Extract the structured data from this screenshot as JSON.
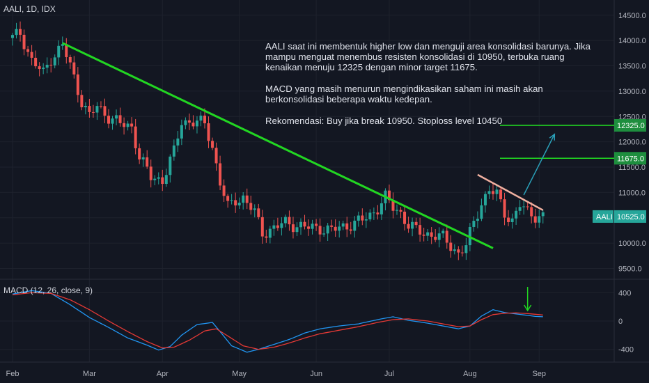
{
  "header": {
    "title": "AALI, 1D, IDX"
  },
  "macd_header": {
    "label": "MACD (12, 26, close, 9)"
  },
  "annotation": {
    "paragraph1": "AALI saat ini membentuk higher low dan menguji area konsolidasi barunya. Jika mampu menguat menembus resisten konsolidasi di 10950, terbuka ruang kenaikan menuju 12325 dengan minor target 11675.",
    "paragraph2": "MACD yang masih menurun mengindikasikan saham ini masih akan berkonsolidasi beberapa waktu kedepan.",
    "paragraph3": "Rekomendasi: Buy jika break 10950. Stoploss level 10450"
  },
  "colors": {
    "background": "#131722",
    "grid": "#1e222d",
    "up": "#26a69a",
    "down": "#ef5350",
    "trendline": "#22d622",
    "target_line": "#22e022",
    "resistance": "#f0b0a0",
    "arrow": "#2a9fb8",
    "macd_line": "#2196f3",
    "signal_line": "#e53935",
    "axis_text": "#b2b5be",
    "last_price_bg": "#26a69a"
  },
  "chart_data": [
    {
      "type": "candlestick",
      "title": "AALI, 1D, IDX",
      "ylim": [
        9300,
        14800
      ],
      "y_ticks": [
        9500,
        10000,
        10500,
        11000,
        11500,
        12000,
        12500,
        13000,
        13500,
        14000,
        14500
      ],
      "y_tick_labels": [
        "9500.0",
        "10000.0",
        "10500.0",
        "11000.0",
        "11500.0",
        "12000.0",
        "12500.0",
        "13000.0",
        "13500.0",
        "14000.0",
        "14500.0"
      ],
      "x_tick_labels": [
        "Feb",
        "Mar",
        "Apr",
        "May",
        "Jun",
        "Jul",
        "Aug",
        "Sep"
      ],
      "x_tick_index": [
        0,
        20,
        39,
        59,
        79,
        98,
        119,
        137
      ],
      "last_price": 10525,
      "last_label": "AALI",
      "last_value_label": "10525.0",
      "targets": [
        {
          "value": 12325,
          "label": "12325.0"
        },
        {
          "value": 11675,
          "label": "11675.0"
        }
      ],
      "close_anchors": [
        [
          0,
          14050
        ],
        [
          2,
          14150
        ],
        [
          5,
          13600
        ],
        [
          8,
          13350
        ],
        [
          10,
          13650
        ],
        [
          13,
          13900
        ],
        [
          15,
          13500
        ],
        [
          18,
          12800
        ],
        [
          20,
          12500
        ],
        [
          22,
          12700
        ],
        [
          25,
          12500
        ],
        [
          28,
          12350
        ],
        [
          31,
          12300
        ],
        [
          33,
          11700
        ],
        [
          36,
          11300
        ],
        [
          39,
          11250
        ],
        [
          42,
          11800
        ],
        [
          44,
          12400
        ],
        [
          47,
          12400
        ],
        [
          50,
          12350
        ],
        [
          52,
          11900
        ],
        [
          54,
          11200
        ],
        [
          56,
          10700
        ],
        [
          58,
          10850
        ],
        [
          60,
          10900
        ],
        [
          63,
          10600
        ],
        [
          65,
          10200
        ],
        [
          68,
          10300
        ],
        [
          71,
          10400
        ],
        [
          74,
          10350
        ],
        [
          77,
          10300
        ],
        [
          80,
          10300
        ],
        [
          83,
          10250
        ],
        [
          85,
          10300
        ],
        [
          87,
          10350
        ],
        [
          89,
          10400
        ],
        [
          91,
          10450
        ],
        [
          93,
          10550
        ],
        [
          95,
          10700
        ],
        [
          97,
          10900
        ],
        [
          99,
          10700
        ],
        [
          101,
          10600
        ],
        [
          103,
          10350
        ],
        [
          105,
          10250
        ],
        [
          107,
          10200
        ],
        [
          110,
          10150
        ],
        [
          112,
          10100
        ],
        [
          114,
          9950
        ],
        [
          116,
          9800
        ],
        [
          118,
          9950
        ],
        [
          120,
          10400
        ],
        [
          122,
          10800
        ],
        [
          124,
          11050
        ],
        [
          126,
          10950
        ],
        [
          128,
          10600
        ],
        [
          130,
          10450
        ],
        [
          132,
          10750
        ],
        [
          134,
          10600
        ],
        [
          136,
          10550
        ],
        [
          138,
          10525
        ]
      ],
      "trendline": {
        "from": [
          13,
          13950
        ],
        "to": [
          125,
          9900
        ]
      },
      "resistance_line": {
        "from": [
          121,
          11350
        ],
        "to": [
          138,
          10650
        ]
      },
      "projection_arrow": {
        "from": [
          133,
          10950
        ],
        "to": [
          141,
          12150
        ]
      }
    },
    {
      "type": "line",
      "title": "MACD (12, 26, close, 9)",
      "ylim": [
        -580,
        580
      ],
      "y_ticks": [
        400,
        0,
        -400
      ],
      "y_tick_labels": [
        "400",
        "0",
        "-400"
      ],
      "series": [
        {
          "name": "MACD",
          "anchors": [
            [
              0,
              380
            ],
            [
              5,
              430
            ],
            [
              10,
              390
            ],
            [
              15,
              230
            ],
            [
              20,
              50
            ],
            [
              25,
              -90
            ],
            [
              30,
              -240
            ],
            [
              35,
              -340
            ],
            [
              38,
              -410
            ],
            [
              41,
              -360
            ],
            [
              44,
              -200
            ],
            [
              48,
              -50
            ],
            [
              52,
              -20
            ],
            [
              54,
              -150
            ],
            [
              57,
              -350
            ],
            [
              61,
              -440
            ],
            [
              64,
              -400
            ],
            [
              68,
              -330
            ],
            [
              72,
              -260
            ],
            [
              76,
              -170
            ],
            [
              80,
              -110
            ],
            [
              85,
              -70
            ],
            [
              90,
              -40
            ],
            [
              95,
              20
            ],
            [
              99,
              60
            ],
            [
              103,
              10
            ],
            [
              108,
              -30
            ],
            [
              112,
              -70
            ],
            [
              116,
              -110
            ],
            [
              119,
              -70
            ],
            [
              122,
              70
            ],
            [
              125,
              160
            ],
            [
              128,
              120
            ],
            [
              131,
              100
            ],
            [
              134,
              80
            ],
            [
              136,
              65
            ],
            [
              138,
              60
            ]
          ]
        },
        {
          "name": "Signal",
          "anchors": [
            [
              0,
              370
            ],
            [
              5,
              400
            ],
            [
              10,
              390
            ],
            [
              15,
              300
            ],
            [
              20,
              160
            ],
            [
              25,
              0
            ],
            [
              30,
              -150
            ],
            [
              35,
              -290
            ],
            [
              39,
              -380
            ],
            [
              42,
              -370
            ],
            [
              46,
              -270
            ],
            [
              50,
              -140
            ],
            [
              53,
              -110
            ],
            [
              56,
              -210
            ],
            [
              60,
              -350
            ],
            [
              64,
              -400
            ],
            [
              68,
              -370
            ],
            [
              72,
              -310
            ],
            [
              76,
              -240
            ],
            [
              80,
              -180
            ],
            [
              85,
              -130
            ],
            [
              90,
              -80
            ],
            [
              95,
              -20
            ],
            [
              99,
              20
            ],
            [
              103,
              30
            ],
            [
              108,
              0
            ],
            [
              112,
              -40
            ],
            [
              116,
              -80
            ],
            [
              119,
              -70
            ],
            [
              122,
              20
            ],
            [
              125,
              90
            ],
            [
              128,
              110
            ],
            [
              131,
              115
            ],
            [
              134,
              105
            ],
            [
              136,
              95
            ],
            [
              138,
              85
            ]
          ]
        }
      ],
      "marker": {
        "type": "down-arrow",
        "index": 134
      }
    }
  ]
}
